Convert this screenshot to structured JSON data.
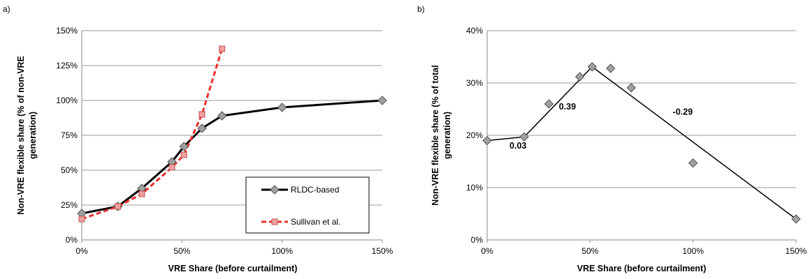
{
  "chart_data": [
    {
      "panel_label": "a)",
      "type": "line",
      "title": "",
      "xlabel": "VRE Share (before curtailment)",
      "ylabel_lines": [
        "Non-VRE flexible share (% of non-VRE",
        "generation)"
      ],
      "xlim": [
        0,
        1.5
      ],
      "ylim": [
        0,
        1.5
      ],
      "x_ticks": [
        0,
        0.5,
        1.0,
        1.5
      ],
      "x_tick_labels": [
        "0%",
        "50%",
        "100%",
        "150%"
      ],
      "y_ticks": [
        0,
        0.25,
        0.5,
        0.75,
        1.0,
        1.25,
        1.5
      ],
      "y_tick_labels": [
        "0%",
        "25%",
        "50%",
        "75%",
        "100%",
        "125%",
        "150%"
      ],
      "grid": "horizontal",
      "legend": "bottom-right",
      "series": [
        {
          "name": "RLDC-based",
          "color": "#000000",
          "marker": "diamond",
          "marker_color": "#a0a0a0",
          "line": "solid",
          "x": [
            0,
            0.18,
            0.3,
            0.45,
            0.51,
            0.6,
            0.7,
            1.0,
            1.5
          ],
          "y": [
            0.19,
            0.24,
            0.37,
            0.56,
            0.67,
            0.8,
            0.89,
            0.95,
            1.0
          ]
        },
        {
          "name": "Sullivan et al.",
          "color": "#e8302a",
          "marker": "square",
          "marker_color": "#f2a0a0",
          "line": "dashed",
          "x": [
            0,
            0.18,
            0.3,
            0.45,
            0.51,
            0.6,
            0.7
          ],
          "y": [
            0.15,
            0.24,
            0.33,
            0.52,
            0.61,
            0.9,
            1.37
          ]
        }
      ]
    },
    {
      "panel_label": "b)",
      "type": "scatter",
      "title": "",
      "xlabel": "VRE Share (before curtailment)",
      "ylabel_lines": [
        "Non-VRE flexible share (% of total",
        "generation)"
      ],
      "xlim": [
        0,
        1.5
      ],
      "ylim": [
        0,
        0.4
      ],
      "x_ticks": [
        0,
        0.5,
        1.0,
        1.5
      ],
      "x_tick_labels": [
        "0%",
        "50%",
        "100%",
        "150%"
      ],
      "y_ticks": [
        0,
        0.1,
        0.2,
        0.3,
        0.4
      ],
      "y_tick_labels": [
        "0%",
        "10%",
        "20%",
        "30%",
        "40%"
      ],
      "grid": "horizontal",
      "points": {
        "marker": "diamond",
        "marker_color": "#a0a0a0",
        "x": [
          0,
          0.18,
          0.3,
          0.45,
          0.51,
          0.6,
          0.7,
          1.0,
          1.5
        ],
        "y": [
          0.19,
          0.197,
          0.26,
          0.312,
          0.331,
          0.328,
          0.291,
          0.147,
          0.04
        ]
      },
      "trend_line": {
        "color": "#000000",
        "x": [
          0,
          0.18,
          0.51,
          1.5
        ],
        "y": [
          0.19,
          0.197,
          0.331,
          0.04
        ]
      },
      "annotations": [
        {
          "text": "0.03",
          "x": 0.15,
          "y": 0.18
        },
        {
          "text": "0.39",
          "x": 0.39,
          "y": 0.255
        },
        {
          "text": "-0.29",
          "x": 0.95,
          "y": 0.245
        }
      ]
    }
  ]
}
